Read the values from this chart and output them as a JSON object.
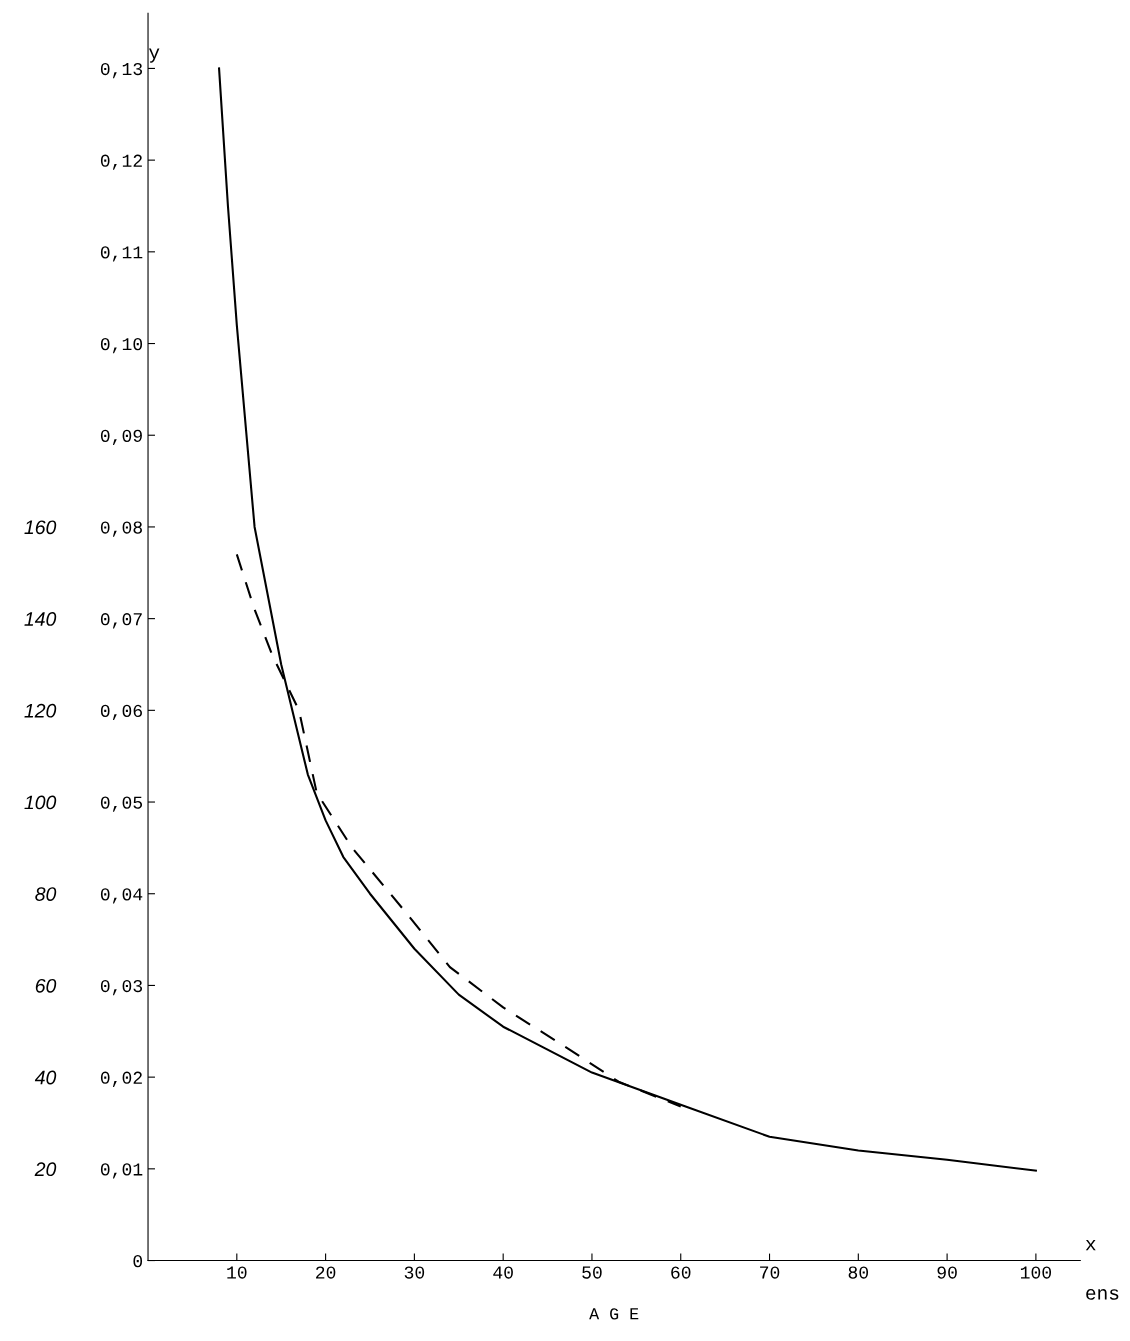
{
  "chart_data": {
    "type": "line",
    "xlabel": "A G E",
    "ylabel": "y",
    "annotations": [
      "x",
      "ens"
    ],
    "xlim": [
      0,
      105
    ],
    "xticks": [
      10,
      20,
      30,
      40,
      50,
      60,
      70,
      80,
      90,
      100
    ],
    "ylim": [
      0,
      0.136
    ],
    "yticks": [
      {
        "value": 0,
        "label": "0"
      },
      {
        "value": 0.01,
        "label": "0,01"
      },
      {
        "value": 0.02,
        "label": "0,02"
      },
      {
        "value": 0.03,
        "label": "0,03"
      },
      {
        "value": 0.04,
        "label": "0,04"
      },
      {
        "value": 0.05,
        "label": "0,05"
      },
      {
        "value": 0.06,
        "label": "0,06"
      },
      {
        "value": 0.07,
        "label": "0,07"
      },
      {
        "value": 0.08,
        "label": "0,08"
      },
      {
        "value": 0.09,
        "label": "0,09"
      },
      {
        "value": 0.1,
        "label": "0,10"
      },
      {
        "value": 0.11,
        "label": "0,11"
      },
      {
        "value": 0.12,
        "label": "0,12"
      },
      {
        "value": 0.13,
        "label": "0,13"
      }
    ],
    "y2lim": [
      0,
      272
    ],
    "y2ticks": [
      20,
      40,
      60,
      80,
      100,
      120,
      140,
      160
    ],
    "grid": false,
    "marker": "none",
    "series": [
      {
        "color": "#000000",
        "line_style": "solid",
        "x": [
          8,
          9,
          10,
          12,
          15,
          18,
          20,
          22,
          25,
          30,
          35,
          40,
          45,
          50,
          60,
          70,
          80,
          90,
          100
        ],
        "values": [
          0.13,
          0.115,
          0.102,
          0.08,
          0.065,
          0.053,
          0.048,
          0.044,
          0.04,
          0.034,
          0.029,
          0.0255,
          0.023,
          0.0205,
          0.017,
          0.0135,
          0.012,
          0.011,
          0.0098
        ]
      },
      {
        "color": "#000000",
        "line_style": "dashed",
        "x": [
          10,
          12,
          14,
          17,
          19,
          23,
          29,
          34,
          40,
          47,
          53,
          60
        ],
        "values": [
          0.077,
          0.071,
          0.066,
          0.06,
          0.051,
          0.045,
          0.038,
          0.032,
          0.0276,
          0.0233,
          0.0195,
          0.0168
        ]
      }
    ]
  }
}
